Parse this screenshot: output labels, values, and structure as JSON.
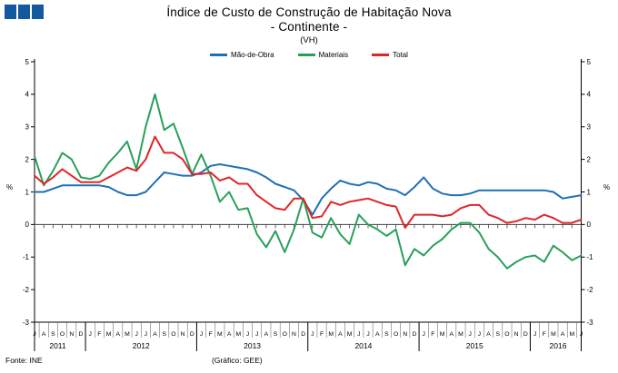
{
  "logo": {
    "color": "#12599e",
    "squares": 3
  },
  "title": {
    "line1": "Índice de Custo de Construção de Habitação Nova",
    "line2": "- Continente -",
    "line3": "(VH)"
  },
  "legend": [
    {
      "label": "Mão-de-Obra",
      "color": "#1f6fb5"
    },
    {
      "label": "Materiais",
      "color": "#28a05b"
    },
    {
      "label": "Total",
      "color": "#e02528"
    }
  ],
  "footer": {
    "source": "Fonte: INE",
    "credit": "(Gráfico: GEE)"
  },
  "chart_data": {
    "type": "line",
    "title": "Índice de Custo de Construção de Habitação Nova - Continente - (VH)",
    "ylabel_left": "%",
    "ylabel_right": "%",
    "ylim": [
      -3,
      5
    ],
    "yticks": [
      5,
      4,
      3,
      2,
      1,
      0,
      -1,
      -2,
      -3
    ],
    "grid": false,
    "legend_position": "top",
    "x_month_letters": [
      "J",
      "A",
      "S",
      "O",
      "N",
      "D",
      "J",
      "F",
      "M",
      "A",
      "M",
      "J",
      "J",
      "A",
      "S",
      "O",
      "N",
      "D",
      "J",
      "F",
      "M",
      "A",
      "M",
      "J",
      "J",
      "A",
      "S",
      "O",
      "N",
      "D",
      "J",
      "F",
      "M",
      "A",
      "M",
      "J",
      "J",
      "A",
      "S",
      "O",
      "N",
      "D",
      "J",
      "F",
      "M",
      "A",
      "M",
      "J",
      "J",
      "A",
      "S",
      "O",
      "N",
      "D",
      "J",
      "F",
      "M",
      "A",
      "M",
      "J"
    ],
    "years": [
      {
        "label": "2011",
        "start": 0,
        "end": 5
      },
      {
        "label": "2012",
        "start": 6,
        "end": 17
      },
      {
        "label": "2013",
        "start": 18,
        "end": 29
      },
      {
        "label": "2014",
        "start": 30,
        "end": 41
      },
      {
        "label": "2015",
        "start": 42,
        "end": 53
      },
      {
        "label": "2016",
        "start": 54,
        "end": 59
      }
    ],
    "series": [
      {
        "name": "Mão-de-Obra",
        "color": "#1f6fb5",
        "values": [
          1.0,
          1.0,
          1.1,
          1.2,
          1.2,
          1.2,
          1.2,
          1.2,
          1.15,
          1.0,
          0.9,
          0.9,
          1.0,
          1.3,
          1.6,
          1.55,
          1.5,
          1.5,
          1.6,
          1.8,
          1.85,
          1.8,
          1.75,
          1.7,
          1.6,
          1.45,
          1.25,
          1.15,
          1.05,
          0.75,
          0.3,
          0.8,
          1.1,
          1.35,
          1.25,
          1.2,
          1.3,
          1.25,
          1.1,
          1.05,
          0.9,
          1.15,
          1.45,
          1.1,
          0.95,
          0.9,
          0.9,
          0.95,
          1.05,
          1.05,
          1.05,
          1.05,
          1.05,
          1.05,
          1.05,
          1.05,
          1.0,
          0.8,
          0.85,
          0.9
        ]
      },
      {
        "name": "Materiais",
        "color": "#28a05b",
        "values": [
          2.1,
          1.2,
          1.65,
          2.2,
          2.0,
          1.45,
          1.4,
          1.5,
          1.9,
          2.2,
          2.55,
          1.7,
          3.0,
          4.0,
          2.9,
          3.1,
          2.35,
          1.55,
          2.15,
          1.5,
          0.7,
          1.0,
          0.45,
          0.5,
          -0.3,
          -0.7,
          -0.2,
          -0.85,
          -0.15,
          0.8,
          -0.25,
          -0.4,
          0.2,
          -0.3,
          -0.6,
          0.3,
          0.0,
          -0.15,
          -0.35,
          -0.15,
          -1.25,
          -0.75,
          -0.95,
          -0.65,
          -0.45,
          -0.15,
          0.05,
          0.05,
          -0.25,
          -0.75,
          -1.0,
          -1.35,
          -1.15,
          -1.0,
          -0.95,
          -1.15,
          -0.65,
          -0.85,
          -1.1,
          -0.95
        ]
      },
      {
        "name": "Total",
        "color": "#e02528",
        "values": [
          1.5,
          1.25,
          1.45,
          1.7,
          1.5,
          1.3,
          1.3,
          1.3,
          1.45,
          1.6,
          1.75,
          1.65,
          2.0,
          2.7,
          2.2,
          2.2,
          2.0,
          1.55,
          1.55,
          1.6,
          1.35,
          1.45,
          1.25,
          1.25,
          0.9,
          0.7,
          0.5,
          0.45,
          0.8,
          0.8,
          0.2,
          0.25,
          0.7,
          0.6,
          0.7,
          0.75,
          0.8,
          0.7,
          0.6,
          0.55,
          -0.1,
          0.3,
          0.3,
          0.3,
          0.25,
          0.3,
          0.5,
          0.6,
          0.6,
          0.3,
          0.2,
          0.05,
          0.1,
          0.2,
          0.15,
          0.3,
          0.2,
          0.05,
          0.05,
          0.15
        ]
      }
    ]
  }
}
